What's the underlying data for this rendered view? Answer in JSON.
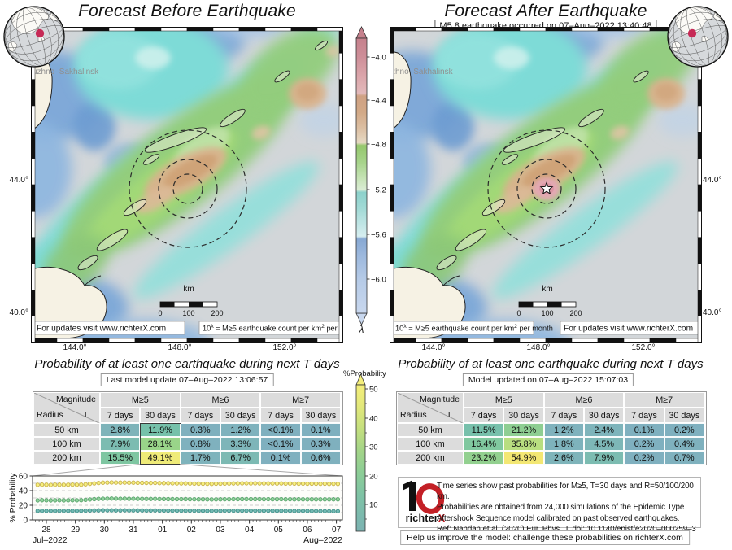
{
  "left_panel": {
    "title": "Forecast Before Earthquake",
    "map": {
      "city_label": "uzhno–Sakhalinsk",
      "km_label": "km",
      "scalebar_ticks": [
        "0",
        "100",
        "200"
      ],
      "notes_order": [
        "updates",
        "lambda"
      ],
      "lon_labels": [
        "144.0°",
        "148.0°",
        "152.0°"
      ],
      "lat_labels": [
        "44.0°",
        "40.0°"
      ]
    }
  },
  "right_panel": {
    "title": "Forecast After Earthquake",
    "event_label": "M5.8 earthquake occurred on 07–Aug–2022 13:40:48",
    "map": {
      "city_label": "zhno–Sakhalinsk",
      "km_label": "km",
      "scalebar_ticks": [
        "0",
        "100",
        "200"
      ],
      "notes_order": [
        "lambda",
        "updates"
      ],
      "lon_labels": [
        "144.0°",
        "148.0°",
        "152.0°"
      ],
      "lat_labels": [
        "44.0°",
        "40.0°"
      ]
    }
  },
  "shared_notes": {
    "updates_note": "For updates visit www.richterX.com",
    "lambda_note": {
      "base": "10",
      "sup": "λ",
      "mid": " = M≥5 earthquake count per km",
      "sup2": "2",
      "tail": " per month"
    }
  },
  "lambda_colorbar": {
    "label": "λ",
    "ticks": [
      "-4.0",
      "-4.4",
      "-4.8",
      "-5.2",
      "-5.6",
      "-6.0"
    ]
  },
  "prob_colorbar": {
    "label": "%Probability",
    "ticks": [
      "50",
      "40",
      "30",
      "20",
      "10"
    ]
  },
  "left_table": {
    "title": "Probability of at least one earthquake during next T days",
    "update_label": "Last model update 07–Aug–2022 13:06:57",
    "corner": {
      "magnitude": "Magnitude",
      "radius": "Radius",
      "t": "T"
    },
    "mag_groups": [
      "M≥5",
      "M≥6",
      "M≥7"
    ],
    "period_headers": [
      "7 days",
      "30 days"
    ],
    "rows": [
      {
        "radius": "50 km",
        "values": [
          "2.8%",
          "11.9%",
          "0.3%",
          "1.2%",
          "<0.1%",
          "0.1%"
        ]
      },
      {
        "radius": "100 km",
        "values": [
          "7.9%",
          "28.1%",
          "0.8%",
          "3.3%",
          "<0.1%",
          "0.3%"
        ]
      },
      {
        "radius": "200 km",
        "values": [
          "15.5%",
          "49.1%",
          "1.7%",
          "6.7%",
          "0.1%",
          "0.6%"
        ]
      }
    ],
    "highlighted_column": "M≥5 30 days"
  },
  "right_table": {
    "title": "Probability of at least one earthquake during next T days",
    "update_label": "Model updated on 07–Aug–2022 15:07:03",
    "corner": {
      "magnitude": "Magnitude",
      "radius": "Radius",
      "t": "T"
    },
    "mag_groups": [
      "M≥5",
      "M≥6",
      "M≥7"
    ],
    "period_headers": [
      "7 days",
      "30 days"
    ],
    "rows": [
      {
        "radius": "50 km",
        "values": [
          "11.5%",
          "21.2%",
          "1.2%",
          "2.4%",
          "0.1%",
          "0.2%"
        ]
      },
      {
        "radius": "100 km",
        "values": [
          "16.4%",
          "35.8%",
          "1.8%",
          "4.5%",
          "0.2%",
          "0.4%"
        ]
      },
      {
        "radius": "200 km",
        "values": [
          "23.2%",
          "54.9%",
          "2.6%",
          "7.9%",
          "0.2%",
          "0.7%"
        ]
      }
    ]
  },
  "chart": {
    "ylabel": "% Probability",
    "yticks": [
      "0",
      "20",
      "40",
      "60"
    ],
    "day_labels": [
      "28",
      "29",
      "30",
      "31",
      "01",
      "02",
      "03",
      "04",
      "05",
      "06",
      "07"
    ],
    "month_left": "Jul–2022",
    "month_right": "Aug–2022"
  },
  "chart_data": {
    "type": "scatter",
    "title": "Past probabilities for M≥5, T=30 days",
    "x_unit": "days since 2022-07-28 00:00",
    "x_start_day": -0.45,
    "x_step_days": 0.15,
    "ylim": [
      0,
      60
    ],
    "grid": "dashed horizontal lines at 10,20,30,40,50",
    "series": [
      {
        "name": "R=200 km",
        "magnitude": "M≥5",
        "period": "T=30 days",
        "fill": "#f6ef7e",
        "edge": "#c8b24a",
        "values": [
          48.0,
          47.9,
          48.1,
          48.0,
          47.8,
          48.0,
          48.1,
          47.9,
          48.0,
          48.2,
          48.0,
          48.1,
          48.6,
          49.3,
          49.9,
          50.4,
          50.8,
          51.0,
          51.1,
          51.0,
          50.9,
          51.0,
          50.8,
          50.9,
          50.7,
          50.6,
          50.5,
          50.4,
          50.5,
          50.3,
          50.2,
          50.1,
          50.0,
          49.9,
          49.8,
          49.9,
          49.7,
          49.6,
          49.5,
          49.4,
          49.3,
          49.2,
          49.4,
          49.5,
          49.6,
          49.7,
          49.8,
          49.9,
          50.0,
          50.0,
          49.9,
          50.0,
          49.9,
          49.8,
          49.9,
          49.8,
          49.7,
          49.8,
          49.6,
          49.7,
          49.6,
          49.5,
          49.6,
          49.4,
          49.5,
          49.4,
          49.3,
          49.4,
          49.2,
          49.3,
          49.1,
          49.1
        ]
      },
      {
        "name": "R=100 km",
        "magnitude": "M≥5",
        "period": "T=30 days",
        "fill": "#92d29c",
        "edge": "#58a46c",
        "values": [
          26.8,
          26.7,
          26.9,
          26.8,
          26.6,
          26.8,
          26.9,
          26.7,
          26.8,
          26.9,
          26.8,
          26.9,
          27.4,
          27.9,
          28.4,
          28.7,
          28.9,
          29.0,
          29.1,
          29.0,
          28.9,
          29.0,
          28.8,
          28.9,
          28.8,
          28.7,
          28.6,
          28.6,
          28.7,
          28.5,
          28.5,
          28.4,
          28.4,
          28.3,
          28.3,
          28.4,
          28.2,
          28.2,
          28.1,
          28.1,
          28.0,
          27.9,
          28.0,
          28.1,
          28.2,
          28.2,
          28.3,
          28.3,
          28.4,
          28.4,
          28.3,
          28.4,
          28.3,
          28.2,
          28.3,
          28.2,
          28.2,
          28.3,
          28.1,
          28.2,
          28.1,
          28.2,
          28.1,
          28.0,
          28.1,
          28.0,
          28.0,
          28.1,
          28.0,
          28.1,
          28.1,
          28.1
        ]
      },
      {
        "name": "R=50 km",
        "magnitude": "M≥5",
        "period": "T=30 days",
        "fill": "#74bab3",
        "edge": "#42938b",
        "values": [
          12.4,
          12.3,
          12.4,
          12.4,
          12.3,
          12.4,
          12.5,
          12.4,
          12.4,
          12.5,
          12.4,
          12.5,
          12.7,
          12.9,
          13.0,
          13.1,
          13.2,
          13.2,
          13.2,
          13.1,
          13.1,
          13.2,
          13.0,
          13.1,
          13.0,
          13.0,
          12.9,
          12.9,
          13.0,
          12.8,
          12.8,
          12.8,
          12.7,
          12.7,
          12.6,
          12.7,
          12.6,
          12.6,
          12.5,
          12.5,
          12.4,
          12.4,
          12.5,
          12.5,
          12.6,
          12.6,
          12.6,
          12.7,
          12.7,
          12.7,
          12.6,
          12.7,
          12.6,
          12.5,
          12.6,
          12.5,
          12.5,
          12.5,
          12.4,
          12.5,
          12.4,
          12.4,
          12.3,
          12.3,
          12.2,
          12.2,
          12.1,
          12.1,
          12.0,
          12.0,
          11.9,
          11.9
        ]
      }
    ]
  },
  "info_box": {
    "logo_black": "richter",
    "logo_red": "X",
    "lines": [
      "Time series show past probabilities for M≥5, T=30 days and R=50/100/200 km.",
      "Probabilities are obtained from 24,000 simulations of the Epidemic Type",
      "Aftershock Sequence model calibrated on past observed earthquakes.",
      "Ref: Nandan et.al. (2020) Eur. Phys. J, doi: 10.1140/epjst/e2020–000259–3"
    ]
  },
  "footer_note": "Help us improve the model: challenge these probabilities on richterX.com",
  "colors": {
    "accent_red": "#c32026",
    "globe_dot": "#c62a56",
    "table_header_bg": "#dcdcdc",
    "map_ocean_gray": "#d2d6d9",
    "land_cream": "#f6f2e4"
  }
}
